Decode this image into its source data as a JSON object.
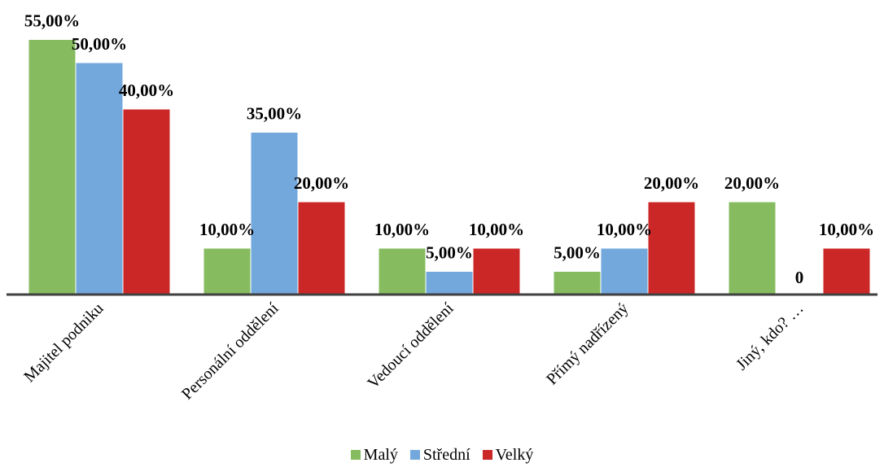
{
  "chart_data": {
    "type": "bar",
    "categories": [
      "Majitel podniku",
      "Personální oddělení",
      "Vedoucí oddělení",
      "Přímý nadřízený",
      "Jiný, kdo? …"
    ],
    "series": [
      {
        "name": "Malý",
        "color": "#86bc5f",
        "values": [
          55,
          10,
          10,
          5,
          20
        ],
        "labels": [
          "55,00%",
          "10,00%",
          "10,00%",
          "5,00%",
          "20,00%"
        ]
      },
      {
        "name": "Střední",
        "color": "#72a8dc",
        "values": [
          50,
          35,
          5,
          10,
          0
        ],
        "labels": [
          "50,00%",
          "35,00%",
          "5,00%",
          "10,00%",
          "0"
        ]
      },
      {
        "name": "Velký",
        "color": "#cc2727",
        "values": [
          40,
          20,
          10,
          20,
          10
        ],
        "labels": [
          "40,00%",
          "20,00%",
          "10,00%",
          "20,00%",
          "10,00%"
        ]
      }
    ],
    "unit": "%",
    "ylim": [
      0,
      55
    ],
    "grid": false,
    "legend_position": "bottom",
    "title": "",
    "xlabel": "",
    "ylabel": ""
  }
}
